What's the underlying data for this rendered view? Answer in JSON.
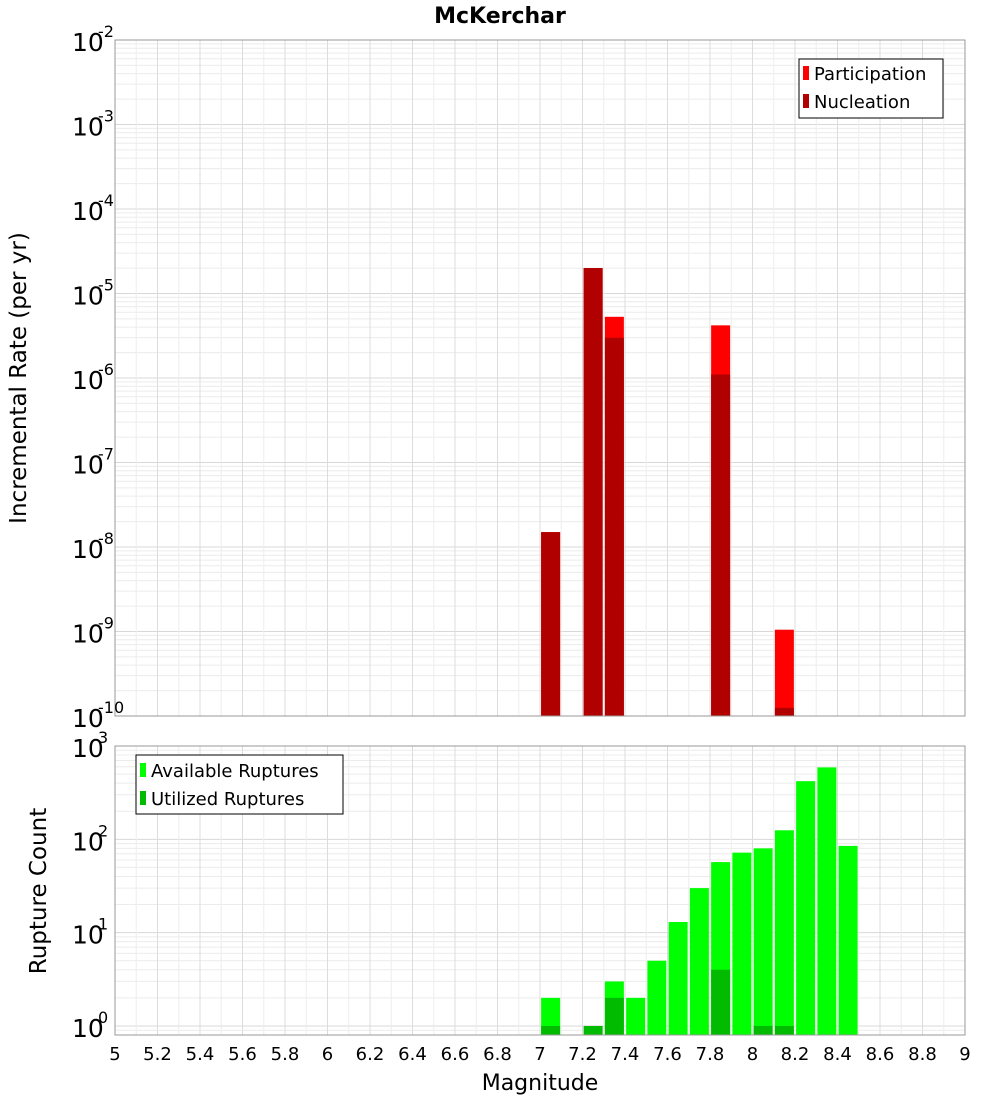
{
  "chart_data": [
    {
      "type": "bar",
      "title": "McKerchar",
      "xlabel": "",
      "ylabel": "Incremental Rate (per yr)",
      "xlim": [
        5,
        9
      ],
      "ylim": [
        1e-10,
        0.01
      ],
      "yscale": "log",
      "grid": true,
      "legend_position": "top-right",
      "y_tick_labels": [
        {
          "base": "10",
          "exp": "-10"
        },
        {
          "base": "10",
          "exp": "-9"
        },
        {
          "base": "10",
          "exp": "-8"
        },
        {
          "base": "10",
          "exp": "-7"
        },
        {
          "base": "10",
          "exp": "-6"
        },
        {
          "base": "10",
          "exp": "-5"
        },
        {
          "base": "10",
          "exp": "-4"
        },
        {
          "base": "10",
          "exp": "-3"
        },
        {
          "base": "10",
          "exp": "-2"
        }
      ],
      "series": [
        {
          "name": "Participation",
          "color": "#ff0000",
          "x": [
            7.05,
            7.25,
            7.35,
            7.85,
            8.15
          ],
          "values": [
            1.5e-08,
            2e-05,
            5.3e-06,
            4.2e-06,
            1.05e-09
          ]
        },
        {
          "name": "Nucleation",
          "color": "#b00000",
          "x": [
            7.05,
            7.25,
            7.35,
            7.85,
            8.15
          ],
          "values": [
            1.5e-08,
            2e-05,
            3e-06,
            1.1e-06,
            1.25e-10
          ]
        }
      ]
    },
    {
      "type": "bar",
      "title": "",
      "xlabel": "Magnitude",
      "ylabel": "Rupture Count",
      "xlim": [
        5,
        9
      ],
      "ylim": [
        0.8,
        1000
      ],
      "yscale": "log",
      "grid": true,
      "legend_position": "top-left",
      "x_tick_labels": [
        "5",
        "5.2",
        "5.4",
        "5.6",
        "5.8",
        "6",
        "6.2",
        "6.4",
        "6.6",
        "6.8",
        "7",
        "7.2",
        "7.4",
        "7.6",
        "7.8",
        "8",
        "8.2",
        "8.4",
        "8.6",
        "8.8",
        "9"
      ],
      "y_tick_labels": [
        {
          "base": "10",
          "exp": "0"
        },
        {
          "base": "10",
          "exp": "1"
        },
        {
          "base": "10",
          "exp": "2"
        },
        {
          "base": "10",
          "exp": "3"
        }
      ],
      "series": [
        {
          "name": "Available Ruptures",
          "color": "#00ff00",
          "x": [
            7.05,
            7.35,
            7.45,
            7.55,
            7.65,
            7.75,
            7.85,
            7.95,
            8.05,
            8.15,
            8.25,
            8.35,
            8.45
          ],
          "values": [
            2,
            3,
            2,
            5,
            13,
            30,
            57,
            72,
            80,
            125,
            420,
            590,
            85
          ]
        },
        {
          "name": "Utilized Ruptures",
          "color": "#00bb00",
          "x": [
            7.05,
            7.25,
            7.35,
            7.85,
            8.05,
            8.15
          ],
          "values": [
            1,
            1,
            2,
            4,
            1,
            1
          ]
        }
      ]
    }
  ]
}
